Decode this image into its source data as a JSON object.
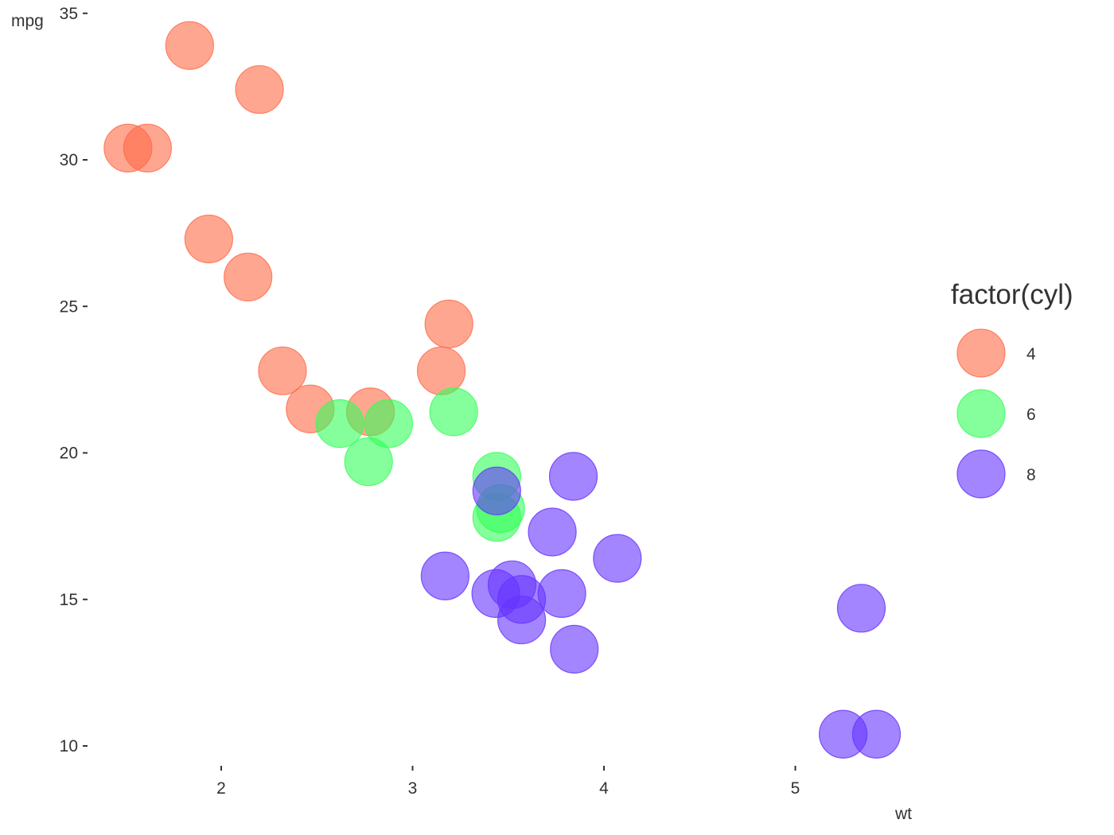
{
  "chart_data": {
    "type": "scatter",
    "xlabel": "wt",
    "ylabel": "mpg",
    "xlim": [
      1.35,
      5.6
    ],
    "ylim": [
      9.6,
      35.5
    ],
    "x_ticks": [
      2,
      3,
      4,
      5
    ],
    "y_ticks": [
      10,
      15,
      20,
      25,
      30,
      35
    ],
    "grid": false,
    "legend": {
      "title": "factor(cyl)",
      "position": "right",
      "entries": [
        "4",
        "6",
        "8"
      ]
    },
    "series": [
      {
        "name": "4",
        "color": "#ff6a47",
        "points": [
          {
            "x": 1.835,
            "y": 33.9
          },
          {
            "x": 2.2,
            "y": 32.4
          },
          {
            "x": 1.513,
            "y": 30.4
          },
          {
            "x": 1.615,
            "y": 30.4
          },
          {
            "x": 1.935,
            "y": 27.3
          },
          {
            "x": 2.14,
            "y": 26.0
          },
          {
            "x": 3.19,
            "y": 24.4
          },
          {
            "x": 2.32,
            "y": 22.8
          },
          {
            "x": 3.15,
            "y": 22.8
          },
          {
            "x": 2.465,
            "y": 21.5
          },
          {
            "x": 2.78,
            "y": 21.4
          }
        ]
      },
      {
        "name": "6",
        "color": "#33ff58",
        "points": [
          {
            "x": 2.62,
            "y": 21.0
          },
          {
            "x": 2.875,
            "y": 21.0
          },
          {
            "x": 3.215,
            "y": 21.4
          },
          {
            "x": 2.77,
            "y": 19.7
          },
          {
            "x": 3.44,
            "y": 19.2
          },
          {
            "x": 3.46,
            "y": 18.1
          },
          {
            "x": 3.44,
            "y": 17.8
          }
        ]
      },
      {
        "name": "8",
        "color": "#6633ff",
        "points": [
          {
            "x": 3.44,
            "y": 18.7
          },
          {
            "x": 3.84,
            "y": 19.2
          },
          {
            "x": 3.73,
            "y": 17.3
          },
          {
            "x": 4.07,
            "y": 16.4
          },
          {
            "x": 3.17,
            "y": 15.8
          },
          {
            "x": 3.435,
            "y": 15.2
          },
          {
            "x": 3.52,
            "y": 15.5
          },
          {
            "x": 3.57,
            "y": 15.0
          },
          {
            "x": 3.78,
            "y": 15.2
          },
          {
            "x": 3.57,
            "y": 14.3
          },
          {
            "x": 3.845,
            "y": 13.3
          },
          {
            "x": 5.345,
            "y": 14.7
          },
          {
            "x": 5.25,
            "y": 10.4
          },
          {
            "x": 5.424,
            "y": 10.4
          }
        ]
      }
    ]
  }
}
